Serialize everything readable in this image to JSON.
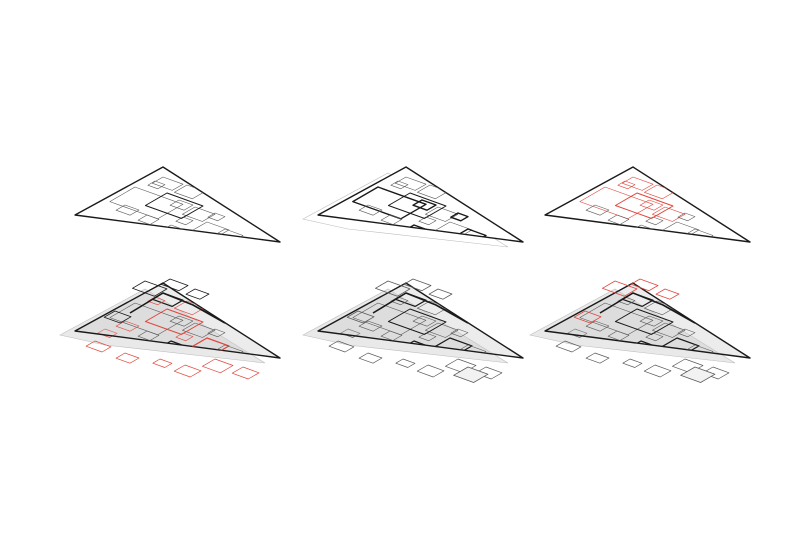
{
  "diagram": {
    "kind": "axonometric-floorplan-sequence",
    "panel_count": 6,
    "colors": {
      "background": "#ffffff",
      "outline": "#1a1a1a",
      "line": "#5a5a5a",
      "faint": "#bdbdbd",
      "highlight": "#e0463c",
      "fill": "#cfcfcf"
    },
    "panels": [
      {
        "id": "panel-1",
        "row": 1,
        "col": 1,
        "stage": "base-plan"
      },
      {
        "id": "panel-2",
        "row": 1,
        "col": 2,
        "stage": "bold-walls"
      },
      {
        "id": "panel-3",
        "row": 1,
        "col": 3,
        "stage": "red-zones"
      },
      {
        "id": "panel-4",
        "row": 2,
        "col": 1,
        "stage": "stacked-red"
      },
      {
        "id": "panel-5",
        "row": 2,
        "col": 2,
        "stage": "stacked-grey"
      },
      {
        "id": "panel-6",
        "row": 2,
        "col": 3,
        "stage": "stacked-mixed"
      }
    ]
  }
}
